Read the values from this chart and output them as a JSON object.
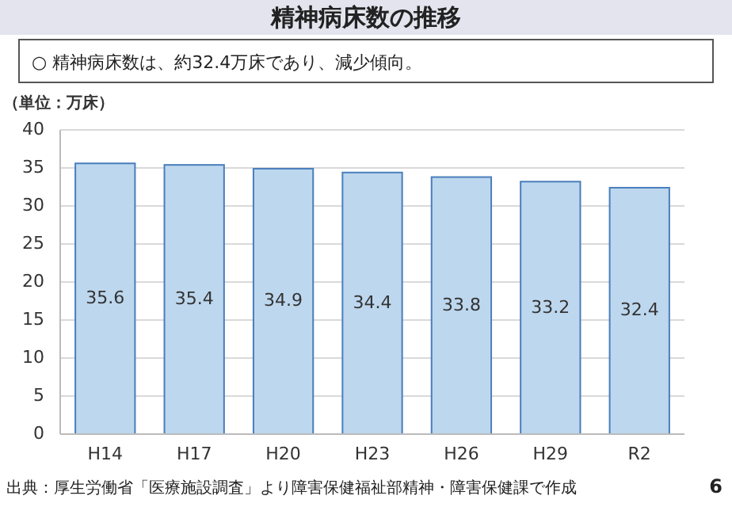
{
  "chart_data": {
    "type": "bar",
    "title": "精神病床数の推移",
    "subtitle": "○ 精神病床数は、約32.4万床であり、減少傾向。",
    "ylabel": "（単位：万床）",
    "categories": [
      "H14",
      "H17",
      "H20",
      "H23",
      "H26",
      "H29",
      "R2"
    ],
    "values": [
      35.6,
      35.4,
      34.9,
      34.4,
      33.8,
      33.2,
      32.4
    ],
    "color": "#bdd7ee",
    "ylim": [
      0,
      40
    ],
    "yticks": [
      0,
      5,
      10,
      15,
      20,
      25,
      30,
      35,
      40
    ],
    "grid": "y",
    "data_labels": true,
    "annotations": [
      "出典：厚生労働省「医療施設調査」より障害保健福祉部精神・障害保健課で作成",
      "6"
    ]
  }
}
